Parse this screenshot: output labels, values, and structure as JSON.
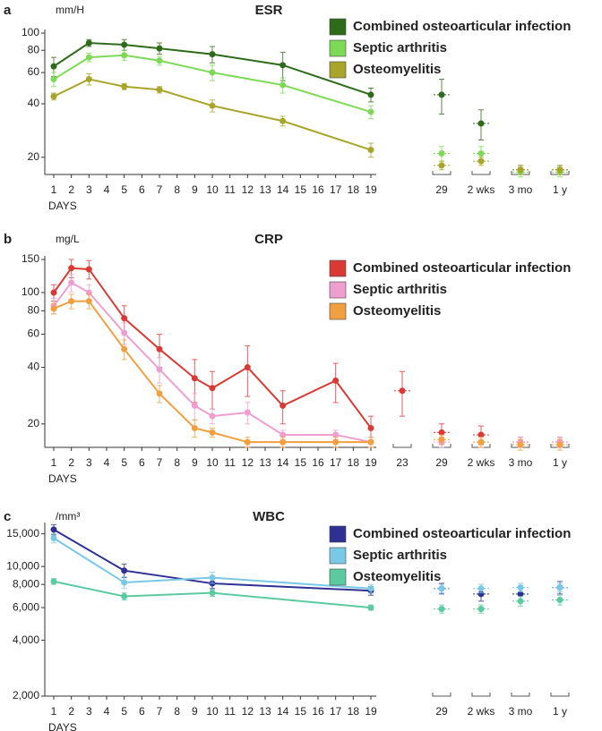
{
  "chart_data": [
    {
      "type": "line",
      "panel": "a",
      "title": "ESR",
      "y_unit": "mm/H",
      "x_label": "DAYS",
      "y_scale": "log",
      "legend": "upper right",
      "xlim": [
        1,
        19
      ],
      "xticks": [
        1,
        2,
        3,
        4,
        5,
        6,
        7,
        8,
        9,
        10,
        11,
        12,
        13,
        14,
        15,
        16,
        17,
        18,
        19
      ],
      "ylim": [
        16,
        100
      ],
      "yticks": [
        20,
        40,
        60,
        80,
        100
      ],
      "followup_categories": [
        "29",
        "2 wks",
        "3 mo",
        "1 y"
      ],
      "series": [
        {
          "name": "Combined osteoarticular infection",
          "color": "#2e6b1a",
          "x": [
            1,
            3,
            5,
            7,
            10,
            14,
            19
          ],
          "values": [
            65,
            88,
            86,
            82,
            76,
            66,
            45
          ],
          "errors": [
            8,
            4,
            6,
            6,
            8,
            12,
            4
          ],
          "followup_values": [
            45,
            31,
            17,
            17
          ],
          "followup_errors": [
            10,
            6,
            1,
            1
          ]
        },
        {
          "name": "Septic arthritis",
          "color": "#7ed957",
          "x": [
            1,
            3,
            5,
            7,
            10,
            14,
            19
          ],
          "values": [
            55,
            73,
            75,
            70,
            60,
            51,
            36
          ],
          "errors": [
            5,
            4,
            5,
            4,
            6,
            5,
            3
          ],
          "followup_values": [
            21,
            21,
            16.5,
            16.5
          ],
          "followup_errors": [
            2,
            2,
            1,
            1
          ]
        },
        {
          "name": "Osteomyelitis",
          "color": "#a9a52a",
          "x": [
            1,
            3,
            5,
            7,
            10,
            14,
            19
          ],
          "values": [
            44,
            55,
            50,
            48,
            39,
            32,
            22
          ],
          "errors": [
            2,
            4,
            2,
            2,
            3,
            2,
            2
          ],
          "followup_values": [
            18,
            19,
            17,
            17
          ],
          "followup_errors": [
            1,
            1,
            1,
            1
          ]
        }
      ]
    },
    {
      "type": "line",
      "panel": "b",
      "title": "CRP",
      "y_unit": "mg/L",
      "x_label": "DAYS",
      "y_scale": "log",
      "legend": "upper right",
      "xlim": [
        1,
        19
      ],
      "xticks": [
        1,
        2,
        3,
        4,
        5,
        6,
        7,
        8,
        9,
        10,
        11,
        12,
        13,
        14,
        15,
        16,
        17,
        18,
        19
      ],
      "ylim": [
        15,
        150
      ],
      "yticks": [
        20,
        40,
        60,
        80,
        100,
        150
      ],
      "followup_categories": [
        "23",
        "29",
        "2 wks",
        "3 mo",
        "1 y"
      ],
      "series": [
        {
          "name": "Combined osteoarticular infection",
          "color": "#d93a35",
          "x": [
            1,
            2,
            3,
            5,
            7,
            9,
            10,
            12,
            14,
            17,
            19
          ],
          "values": [
            100,
            135,
            133,
            73,
            50,
            35,
            31,
            40,
            25,
            34,
            19
          ],
          "errors": [
            10,
            15,
            15,
            12,
            10,
            9,
            7,
            12,
            5,
            8,
            3
          ],
          "followup_values": [
            30,
            18,
            17.5,
            16,
            16
          ],
          "followup_errors": [
            8,
            2,
            2,
            1,
            1
          ]
        },
        {
          "name": "Septic arthritis",
          "color": "#ee9fcf",
          "x": [
            1,
            2,
            3,
            5,
            7,
            9,
            10,
            12,
            14,
            17,
            19
          ],
          "values": [
            85,
            113,
            100,
            61,
            39,
            25,
            22,
            23,
            17.5,
            17.5,
            16
          ],
          "errors": [
            8,
            12,
            10,
            8,
            6,
            4,
            2,
            3,
            1,
            1,
            1
          ],
          "followup_values": [
            null,
            16,
            16,
            16,
            16
          ],
          "followup_errors": [
            null,
            1,
            1,
            1,
            1
          ]
        },
        {
          "name": "Osteomyelitis",
          "color": "#f0a040",
          "x": [
            1,
            2,
            3,
            5,
            7,
            9,
            10,
            12,
            14,
            17,
            19
          ],
          "values": [
            82,
            90,
            90,
            50,
            29,
            19,
            18,
            16,
            16,
            16,
            16
          ],
          "errors": [
            5,
            8,
            8,
            6,
            3,
            2,
            1,
            1,
            1,
            1,
            1
          ],
          "followup_values": [
            null,
            16.5,
            16,
            15.5,
            15.5
          ],
          "followup_errors": [
            null,
            1,
            1,
            1,
            1
          ]
        }
      ]
    },
    {
      "type": "line",
      "panel": "c",
      "title": "WBC",
      "y_unit": "/mm³",
      "x_label": "DAYS",
      "y_scale": "log",
      "legend": "upper right",
      "xlim": [
        1,
        19
      ],
      "xticks": [
        1,
        2,
        3,
        4,
        5,
        6,
        7,
        8,
        9,
        10,
        11,
        12,
        13,
        14,
        15,
        16,
        17,
        18,
        19
      ],
      "ylim": [
        2000,
        16500
      ],
      "yticks": [
        {
          "value": 2000,
          "label": "2,000"
        },
        {
          "value": 4000,
          "label": "4,000"
        },
        {
          "value": 6000,
          "label": "6,000"
        },
        {
          "value": 8000,
          "label": "8,000"
        },
        {
          "value": 10000,
          "label": "10,000"
        },
        {
          "value": 15000,
          "label": "15,000"
        }
      ],
      "followup_categories": [
        "29",
        "2 wks",
        "3 mo",
        "1 y"
      ],
      "series": [
        {
          "name": "Combined osteoarticular infection",
          "color": "#2e3192",
          "x": [
            1,
            5,
            10,
            19
          ],
          "values": [
            15800,
            9500,
            8100,
            7400
          ],
          "errors": [
            1000,
            800,
            500,
            400
          ],
          "followup_values": [
            7600,
            7100,
            7100,
            7700
          ],
          "followup_errors": [
            500,
            600,
            600,
            600
          ]
        },
        {
          "name": "Septic arthritis",
          "color": "#78c8e6",
          "x": [
            1,
            5,
            10,
            19
          ],
          "values": [
            14200,
            8200,
            8700,
            7600
          ],
          "errors": [
            800,
            600,
            600,
            400
          ],
          "followup_values": [
            7600,
            7600,
            7700,
            7700
          ],
          "followup_errors": [
            400,
            400,
            400,
            400
          ]
        },
        {
          "name": "Osteomyelitis",
          "color": "#5ccaa0",
          "x": [
            1,
            5,
            10,
            19
          ],
          "values": [
            8300,
            6900,
            7200,
            6000
          ],
          "errors": [
            300,
            300,
            300,
            200
          ],
          "followup_values": [
            5900,
            5900,
            6500,
            6600
          ],
          "followup_errors": [
            300,
            300,
            400,
            400
          ]
        }
      ]
    }
  ]
}
